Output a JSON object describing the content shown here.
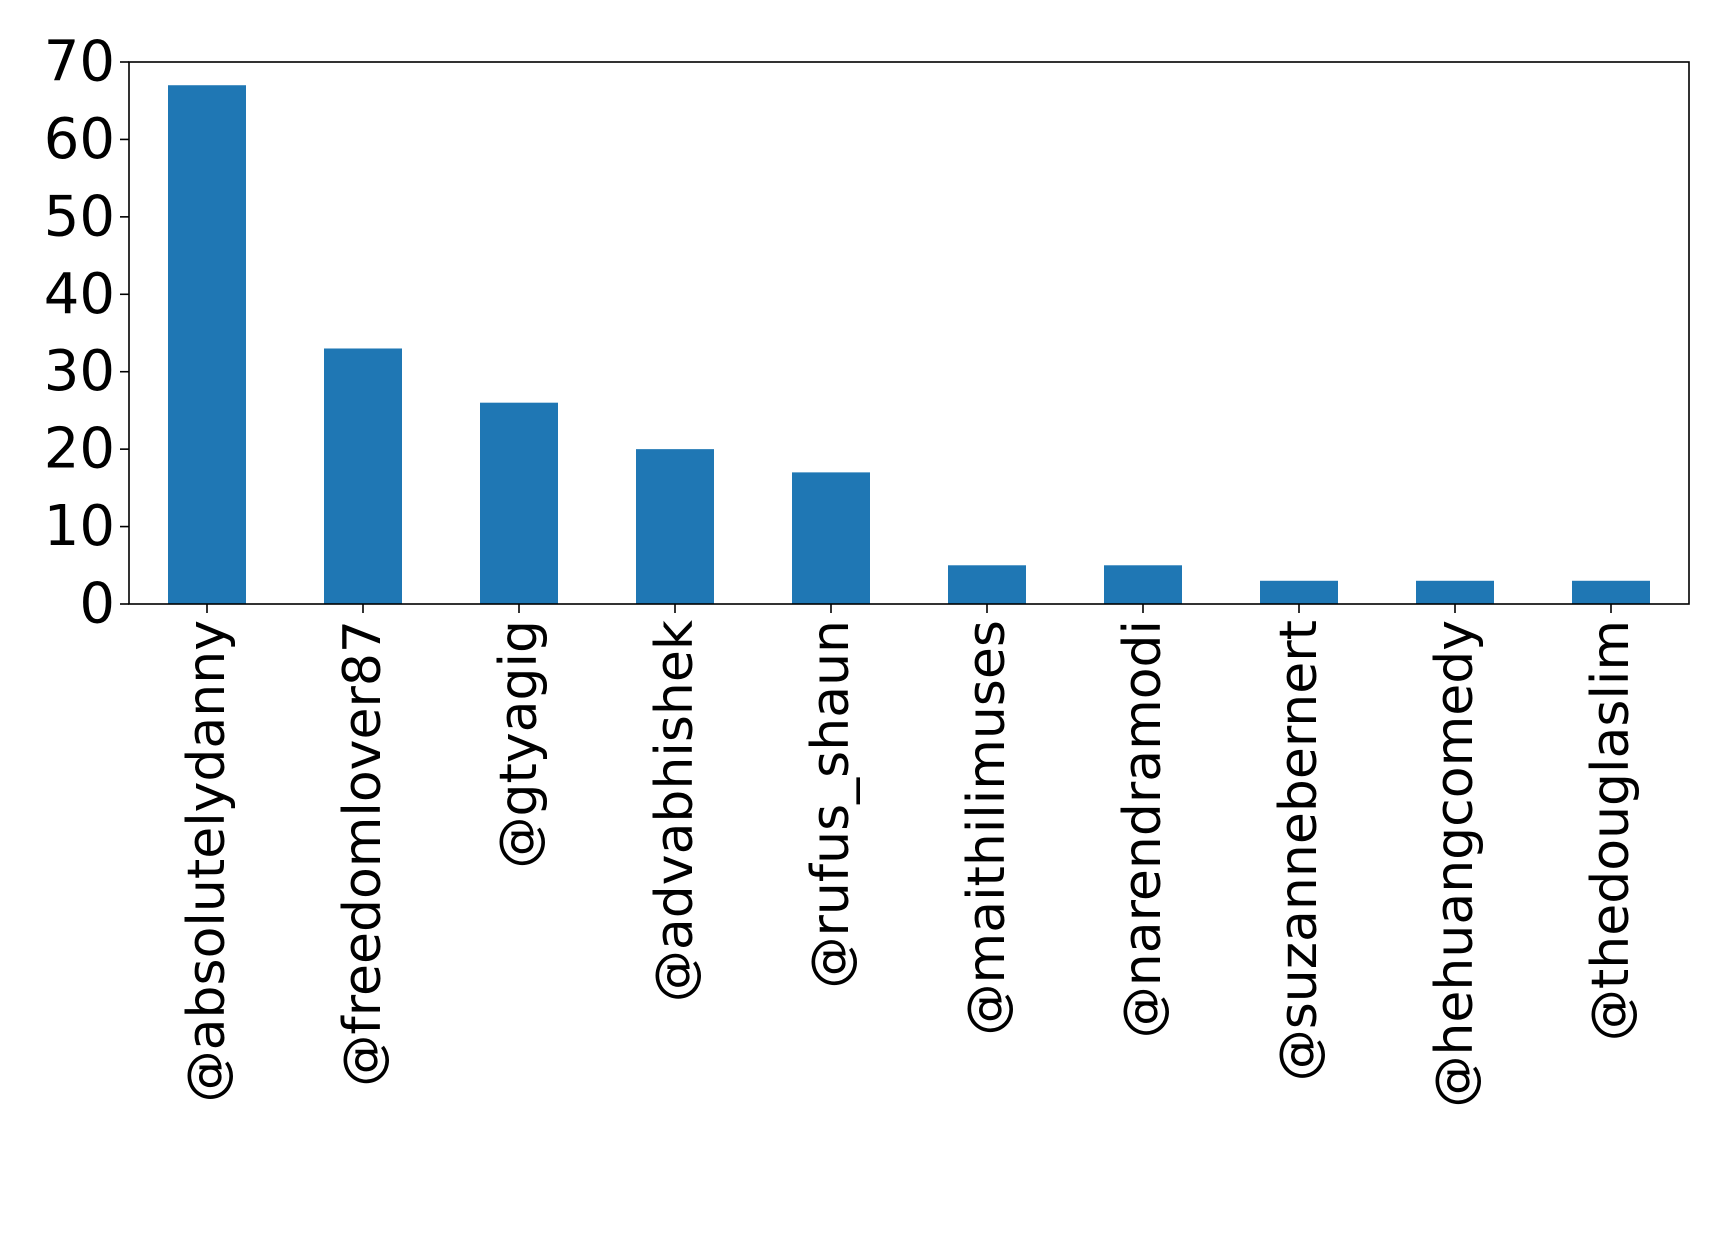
{
  "chart_data": {
    "type": "bar",
    "title": "",
    "xlabel": "",
    "ylabel": "",
    "categories": [
      "@absolutelydanny",
      "@freedomlover87",
      "@gtyagig",
      "@advabhishek",
      "@rufus_shaun",
      "@maithilimuses",
      "@narendramodi",
      "@suzannebernert",
      "@hehuangcomedy",
      "@thedouglaslim"
    ],
    "values": [
      67,
      33,
      26,
      20,
      17,
      5,
      5,
      3,
      3,
      3
    ],
    "ylim": [
      0,
      70
    ],
    "yticks": [
      0,
      10,
      20,
      30,
      40,
      50,
      60,
      70
    ],
    "bar_color": "#1f77b4",
    "grid": false,
    "legend": "none"
  }
}
